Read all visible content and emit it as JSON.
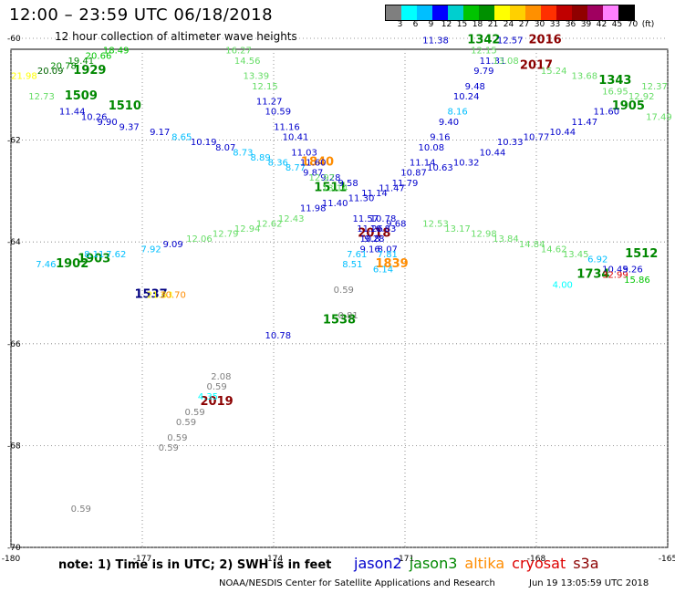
{
  "header": {
    "title": "12:00 – 23:59 UTC 06/18/2018",
    "subtitle": "12 hour collection of altimeter wave heights"
  },
  "color_scale": {
    "colors": [
      "#7f7f7f",
      "#00ffff",
      "#00bfff",
      "#0000ff",
      "#00cfcf",
      "#00c400",
      "#009000",
      "#ffff00",
      "#ffd000",
      "#ff9000",
      "#ff3000",
      "#c00000",
      "#900000",
      "#a00060",
      "#ff80ff",
      "#000000"
    ],
    "labels": [
      "3",
      "6",
      "9",
      "12",
      "15",
      "18",
      "21",
      "24",
      "27",
      "30",
      "33",
      "36",
      "39",
      "42",
      "45",
      "70",
      "(ft)"
    ]
  },
  "footer": {
    "note": "note: 1) Time is in UTC; 2) SWH is in feet",
    "credit": "NOAA/NESDIS Center for Satellite Applications and Research",
    "timestamp": "Jun 19 13:05:59 UTC 2018"
  },
  "legend": [
    {
      "name": "jason2",
      "color": "#0000cc"
    },
    {
      "name": "jason3",
      "color": "#008800"
    },
    {
      "name": "altika",
      "color": "#ff8c00"
    },
    {
      "name": "cryosat",
      "color": "#dd0000"
    },
    {
      "name": "s3a",
      "color": "#8b0000"
    }
  ],
  "chart_data": {
    "type": "scatter",
    "x_axis": {
      "ticks": [
        "-180",
        "-177",
        "-174",
        "-171",
        "-168",
        "-165"
      ],
      "range": [
        -180,
        -165
      ]
    },
    "y_axis": {
      "ticks": [
        "-60",
        "-62",
        "-64",
        "-66",
        "-68",
        "-70"
      ],
      "range": [
        -70,
        -60
      ]
    },
    "grid": "dotted",
    "points": [
      {
        "x": -178.2,
        "y": -60.7,
        "label": "1929",
        "color": "#008800",
        "big": true
      },
      {
        "x": -178.4,
        "y": -61.2,
        "label": "1509",
        "color": "#008800",
        "big": true
      },
      {
        "x": -177.4,
        "y": -61.4,
        "label": "1510",
        "color": "#008800",
        "big": true
      },
      {
        "x": -178.1,
        "y": -64.4,
        "label": "1903",
        "color": "#008800",
        "big": true
      },
      {
        "x": -178.6,
        "y": -64.5,
        "label": "1902",
        "color": "#008800",
        "big": true
      },
      {
        "x": -176.8,
        "y": -65.1,
        "label": "1537",
        "color": "#000080",
        "big": true
      },
      {
        "x": -173.0,
        "y": -62.5,
        "label": "1840",
        "color": "#ff8c00",
        "big": true
      },
      {
        "x": -172.7,
        "y": -63.0,
        "label": "1511",
        "color": "#008800",
        "big": true
      },
      {
        "x": -171.7,
        "y": -63.9,
        "label": "2018",
        "color": "#8b0000",
        "big": true
      },
      {
        "x": -171.3,
        "y": -64.5,
        "label": "1839",
        "color": "#ff8c00",
        "big": true
      },
      {
        "x": -172.5,
        "y": -65.6,
        "label": "1538",
        "color": "#008800",
        "big": true
      },
      {
        "x": -175.3,
        "y": -67.2,
        "label": "2019",
        "color": "#8b0000",
        "big": true
      },
      {
        "x": -169.2,
        "y": -60.1,
        "label": "1342",
        "color": "#008800",
        "big": true
      },
      {
        "x": -167.8,
        "y": -60.1,
        "label": "2016",
        "color": "#8b0000",
        "big": true
      },
      {
        "x": -168.0,
        "y": -60.6,
        "label": "2017",
        "color": "#8b0000",
        "big": true
      },
      {
        "x": -166.2,
        "y": -60.9,
        "label": "1343",
        "color": "#008800",
        "big": true
      },
      {
        "x": -165.9,
        "y": -61.4,
        "label": "1905",
        "color": "#008800",
        "big": true
      },
      {
        "x": -166.7,
        "y": -64.7,
        "label": "1734",
        "color": "#008800",
        "big": true
      },
      {
        "x": -165.6,
        "y": -64.3,
        "label": "1512",
        "color": "#008800",
        "big": true
      },
      {
        "x": -179.7,
        "y": -60.8,
        "label": "21.98",
        "color": "#ffff00"
      },
      {
        "x": -179.1,
        "y": -60.7,
        "label": "20.09",
        "color": "#006400"
      },
      {
        "x": -178.8,
        "y": -60.6,
        "label": "20.78",
        "color": "#008800"
      },
      {
        "x": -178.4,
        "y": -60.5,
        "label": "19.41",
        "color": "#008800"
      },
      {
        "x": -178.0,
        "y": -60.4,
        "label": "20.66",
        "color": "#00c400"
      },
      {
        "x": -177.6,
        "y": -60.3,
        "label": "18.49",
        "color": "#00c400"
      },
      {
        "x": -179.3,
        "y": -61.2,
        "label": "12.73",
        "color": "#66dd66"
      },
      {
        "x": -178.6,
        "y": -61.5,
        "label": "11.44",
        "color": "#0000cc"
      },
      {
        "x": -178.1,
        "y": -61.6,
        "label": "10.26",
        "color": "#0000cc"
      },
      {
        "x": -177.8,
        "y": -61.7,
        "label": "9.90",
        "color": "#0000cc"
      },
      {
        "x": -177.3,
        "y": -61.8,
        "label": "9.37",
        "color": "#0000cc"
      },
      {
        "x": -176.6,
        "y": -61.9,
        "label": "9.17",
        "color": "#0000cc"
      },
      {
        "x": -176.1,
        "y": -62.0,
        "label": "8.65",
        "color": "#00bfff"
      },
      {
        "x": -175.6,
        "y": -62.1,
        "label": "10.19",
        "color": "#0000cc"
      },
      {
        "x": -175.1,
        "y": -62.2,
        "label": "8.07",
        "color": "#0000cc"
      },
      {
        "x": -174.7,
        "y": -62.3,
        "label": "8.73",
        "color": "#00bfff"
      },
      {
        "x": -174.3,
        "y": -62.4,
        "label": "8.89",
        "color": "#00bfff"
      },
      {
        "x": -173.9,
        "y": -62.5,
        "label": "8.36",
        "color": "#00bfff"
      },
      {
        "x": -173.5,
        "y": -62.6,
        "label": "8.77",
        "color": "#00bfff"
      },
      {
        "x": -173.1,
        "y": -62.7,
        "label": "9.87",
        "color": "#0000cc"
      },
      {
        "x": -172.7,
        "y": -62.8,
        "label": "9.28",
        "color": "#0000cc"
      },
      {
        "x": -172.3,
        "y": -62.9,
        "label": "9.58",
        "color": "#0000cc"
      },
      {
        "x": -174.8,
        "y": -60.3,
        "label": "16.27",
        "color": "#66dd66"
      },
      {
        "x": -174.6,
        "y": -60.5,
        "label": "14.56",
        "color": "#66dd66"
      },
      {
        "x": -174.4,
        "y": -60.8,
        "label": "13.39",
        "color": "#66dd66"
      },
      {
        "x": -174.2,
        "y": -61.0,
        "label": "12.15",
        "color": "#66dd66"
      },
      {
        "x": -174.1,
        "y": -61.3,
        "label": "11.27",
        "color": "#0000cc"
      },
      {
        "x": -173.9,
        "y": -61.5,
        "label": "10.59",
        "color": "#0000cc"
      },
      {
        "x": -173.7,
        "y": -61.8,
        "label": "11.16",
        "color": "#0000cc"
      },
      {
        "x": -173.5,
        "y": -62.0,
        "label": "10.41",
        "color": "#0000cc"
      },
      {
        "x": -173.3,
        "y": -62.3,
        "label": "11.03",
        "color": "#0000cc"
      },
      {
        "x": -173.1,
        "y": -62.5,
        "label": "11.60",
        "color": "#0000cc"
      },
      {
        "x": -172.9,
        "y": -62.8,
        "label": "12.97",
        "color": "#66dd66"
      },
      {
        "x": -172.6,
        "y": -63.0,
        "label": "13.14",
        "color": "#66dd66"
      },
      {
        "x": -176.3,
        "y": -64.1,
        "label": "9.09",
        "color": "#0000cc"
      },
      {
        "x": -176.8,
        "y": -64.2,
        "label": "7.92",
        "color": "#00bfff"
      },
      {
        "x": -177.6,
        "y": -64.3,
        "label": "7.62",
        "color": "#00bfff"
      },
      {
        "x": -178.1,
        "y": -64.3,
        "label": "8.11",
        "color": "#00bfff"
      },
      {
        "x": -179.2,
        "y": -64.5,
        "label": "7.46",
        "color": "#00bfff"
      },
      {
        "x": -175.7,
        "y": -64.0,
        "label": "12.06",
        "color": "#66dd66"
      },
      {
        "x": -175.1,
        "y": -63.9,
        "label": "12.79",
        "color": "#66dd66"
      },
      {
        "x": -174.6,
        "y": -63.8,
        "label": "12.94",
        "color": "#66dd66"
      },
      {
        "x": -174.1,
        "y": -63.7,
        "label": "12.62",
        "color": "#66dd66"
      },
      {
        "x": -173.6,
        "y": -63.6,
        "label": "12.43",
        "color": "#66dd66"
      },
      {
        "x": -173.1,
        "y": -63.4,
        "label": "11.98",
        "color": "#0000cc"
      },
      {
        "x": -172.6,
        "y": -63.3,
        "label": "11.40",
        "color": "#0000cc"
      },
      {
        "x": -176.6,
        "y": -65.1,
        "label": "21.63",
        "color": "#ffff00"
      },
      {
        "x": -176.3,
        "y": -65.1,
        "label": "30.70",
        "color": "#ff8c00"
      },
      {
        "x": -172.0,
        "y": -63.2,
        "label": "11.30",
        "color": "#0000cc"
      },
      {
        "x": -171.7,
        "y": -63.1,
        "label": "11.14",
        "color": "#0000cc"
      },
      {
        "x": -171.3,
        "y": -63.0,
        "label": "11.47",
        "color": "#0000cc"
      },
      {
        "x": -171.0,
        "y": -62.9,
        "label": "11.79",
        "color": "#0000cc"
      },
      {
        "x": -170.8,
        "y": -62.7,
        "label": "10.87",
        "color": "#0000cc"
      },
      {
        "x": -170.6,
        "y": -62.5,
        "label": "11.14",
        "color": "#0000cc"
      },
      {
        "x": -170.4,
        "y": -62.2,
        "label": "10.08",
        "color": "#0000cc"
      },
      {
        "x": -170.2,
        "y": -62.0,
        "label": "9.16",
        "color": "#0000cc"
      },
      {
        "x": -170.0,
        "y": -61.7,
        "label": "9.40",
        "color": "#0000cc"
      },
      {
        "x": -169.8,
        "y": -61.5,
        "label": "8.16",
        "color": "#00bfff"
      },
      {
        "x": -169.6,
        "y": -61.2,
        "label": "10.24",
        "color": "#0000cc"
      },
      {
        "x": -169.4,
        "y": -61.0,
        "label": "9.48",
        "color": "#0000cc"
      },
      {
        "x": -169.2,
        "y": -60.7,
        "label": "9.79",
        "color": "#0000cc"
      },
      {
        "x": -169.0,
        "y": -60.5,
        "label": "11.31",
        "color": "#0000cc"
      },
      {
        "x": -170.3,
        "y": -60.1,
        "label": "11.38",
        "color": "#0000cc"
      },
      {
        "x": -168.6,
        "y": -60.1,
        "label": "12.57",
        "color": "#0000cc"
      },
      {
        "x": -168.7,
        "y": -60.5,
        "label": "13.08",
        "color": "#66dd66"
      },
      {
        "x": -169.2,
        "y": -60.3,
        "label": "12.15",
        "color": "#66dd66"
      },
      {
        "x": -170.2,
        "y": -62.6,
        "label": "10.63",
        "color": "#0000cc"
      },
      {
        "x": -169.6,
        "y": -62.5,
        "label": "10.32",
        "color": "#0000cc"
      },
      {
        "x": -169.0,
        "y": -62.3,
        "label": "10.44",
        "color": "#0000cc"
      },
      {
        "x": -168.6,
        "y": -62.1,
        "label": "10.33",
        "color": "#0000cc"
      },
      {
        "x": -168.0,
        "y": -62.0,
        "label": "10.77",
        "color": "#0000cc"
      },
      {
        "x": -167.4,
        "y": -61.9,
        "label": "10.44",
        "color": "#0000cc"
      },
      {
        "x": -166.9,
        "y": -61.7,
        "label": "11.47",
        "color": "#0000cc"
      },
      {
        "x": -166.4,
        "y": -61.5,
        "label": "11.60",
        "color": "#0000cc"
      },
      {
        "x": -167.6,
        "y": -60.7,
        "label": "15.24",
        "color": "#66dd66"
      },
      {
        "x": -166.9,
        "y": -60.8,
        "label": "13.68",
        "color": "#66dd66"
      },
      {
        "x": -166.2,
        "y": -61.1,
        "label": "16.95",
        "color": "#66dd66"
      },
      {
        "x": -165.6,
        "y": -61.2,
        "label": "12.92",
        "color": "#66dd66"
      },
      {
        "x": -165.3,
        "y": -61.0,
        "label": "12.37",
        "color": "#66dd66"
      },
      {
        "x": -165.2,
        "y": -61.6,
        "label": "17.49",
        "color": "#66dd66"
      },
      {
        "x": -170.3,
        "y": -63.7,
        "label": "12.53",
        "color": "#66dd66"
      },
      {
        "x": -169.8,
        "y": -63.8,
        "label": "13.17",
        "color": "#66dd66"
      },
      {
        "x": -169.2,
        "y": -63.9,
        "label": "12.98",
        "color": "#66dd66"
      },
      {
        "x": -168.7,
        "y": -64.0,
        "label": "13.84",
        "color": "#66dd66"
      },
      {
        "x": -168.1,
        "y": -64.1,
        "label": "14.84",
        "color": "#66dd66"
      },
      {
        "x": -167.6,
        "y": -64.2,
        "label": "14.62",
        "color": "#66dd66"
      },
      {
        "x": -167.1,
        "y": -64.3,
        "label": "13.45",
        "color": "#66dd66"
      },
      {
        "x": -166.6,
        "y": -64.4,
        "label": "6.92",
        "color": "#00bfff"
      },
      {
        "x": -166.2,
        "y": -64.6,
        "label": "10.45",
        "color": "#0000cc"
      },
      {
        "x": -166.2,
        "y": -64.7,
        "label": "32.99",
        "color": "#dd0000"
      },
      {
        "x": -165.8,
        "y": -64.6,
        "label": "9.26",
        "color": "#0000cc"
      },
      {
        "x": -165.7,
        "y": -64.8,
        "label": "15.86",
        "color": "#00c400"
      },
      {
        "x": -167.4,
        "y": -64.9,
        "label": "4.00",
        "color": "#00ffff"
      },
      {
        "x": -171.9,
        "y": -63.6,
        "label": "11.57",
        "color": "#0000cc"
      },
      {
        "x": -171.5,
        "y": -63.6,
        "label": "10.78",
        "color": "#0000cc"
      },
      {
        "x": -171.2,
        "y": -63.7,
        "label": "9.68",
        "color": "#0000cc"
      },
      {
        "x": -171.8,
        "y": -63.8,
        "label": "11.26",
        "color": "#0000cc"
      },
      {
        "x": -171.5,
        "y": -63.8,
        "label": "10.83",
        "color": "#0000cc"
      },
      {
        "x": -171.8,
        "y": -64.0,
        "label": "10.8",
        "color": "#0000cc"
      },
      {
        "x": -171.7,
        "y": -64.0,
        "label": "9.28",
        "color": "#0000cc"
      },
      {
        "x": -171.8,
        "y": -64.2,
        "label": "9.16",
        "color": "#0000cc"
      },
      {
        "x": -171.4,
        "y": -64.2,
        "label": "8.07",
        "color": "#0000cc"
      },
      {
        "x": -172.1,
        "y": -64.3,
        "label": "7.61",
        "color": "#00bfff"
      },
      {
        "x": -171.4,
        "y": -64.3,
        "label": "7.81",
        "color": "#00bfff"
      },
      {
        "x": -172.2,
        "y": -64.5,
        "label": "8.51",
        "color": "#00bfff"
      },
      {
        "x": -171.5,
        "y": -64.6,
        "label": "6.14",
        "color": "#00bfff"
      },
      {
        "x": -172.4,
        "y": -65.0,
        "label": "0.59",
        "color": "#7f7f7f"
      },
      {
        "x": -172.3,
        "y": -65.5,
        "label": "0.81",
        "color": "#7f7f7f"
      },
      {
        "x": -173.9,
        "y": -65.9,
        "label": "10.78",
        "color": "#0000cc"
      },
      {
        "x": -175.2,
        "y": -66.7,
        "label": "2.08",
        "color": "#7f7f7f"
      },
      {
        "x": -175.3,
        "y": -66.9,
        "label": "0.59",
        "color": "#7f7f7f"
      },
      {
        "x": -175.5,
        "y": -67.1,
        "label": "4.35",
        "color": "#00ffff"
      },
      {
        "x": -175.8,
        "y": -67.4,
        "label": "0.59",
        "color": "#7f7f7f"
      },
      {
        "x": -176.0,
        "y": -67.6,
        "label": "0.59",
        "color": "#7f7f7f"
      },
      {
        "x": -176.2,
        "y": -67.9,
        "label": "0.59",
        "color": "#7f7f7f"
      },
      {
        "x": -176.4,
        "y": -68.1,
        "label": "0.59",
        "color": "#7f7f7f"
      },
      {
        "x": -178.4,
        "y": -69.3,
        "label": "0.59",
        "color": "#7f7f7f"
      }
    ]
  }
}
